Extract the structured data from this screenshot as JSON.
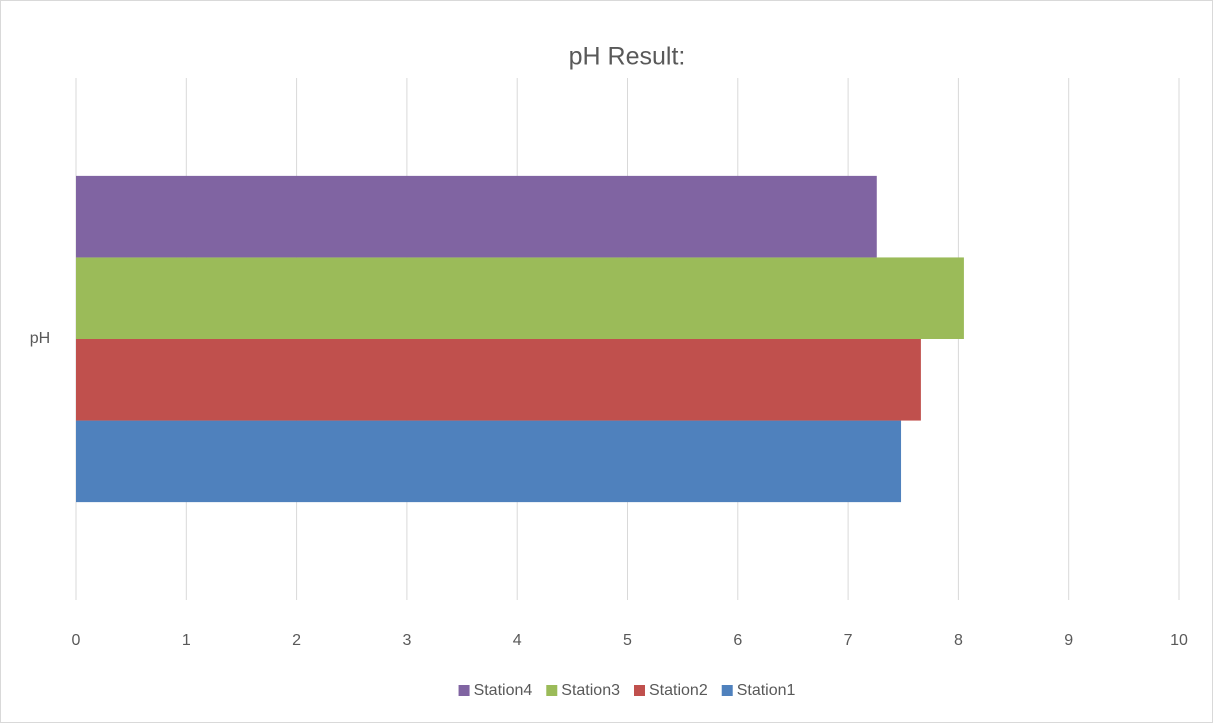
{
  "chart_data": {
    "type": "hbar",
    "title": "pH Result:",
    "categories": [
      "pH"
    ],
    "series": [
      {
        "name": "Station1",
        "color": "#4f81bd",
        "values": [
          7.48
        ]
      },
      {
        "name": "Station2",
        "color": "#c0504d",
        "values": [
          7.66
        ]
      },
      {
        "name": "Station3",
        "color": "#9bbb59",
        "values": [
          8.05
        ]
      },
      {
        "name": "Station4",
        "color": "#8064a2",
        "values": [
          7.26
        ]
      }
    ],
    "xlim": [
      0,
      10
    ],
    "xticks": [
      0,
      1,
      2,
      3,
      4,
      5,
      6,
      7,
      8,
      9,
      10
    ],
    "grid": true,
    "legend": "bottom"
  }
}
